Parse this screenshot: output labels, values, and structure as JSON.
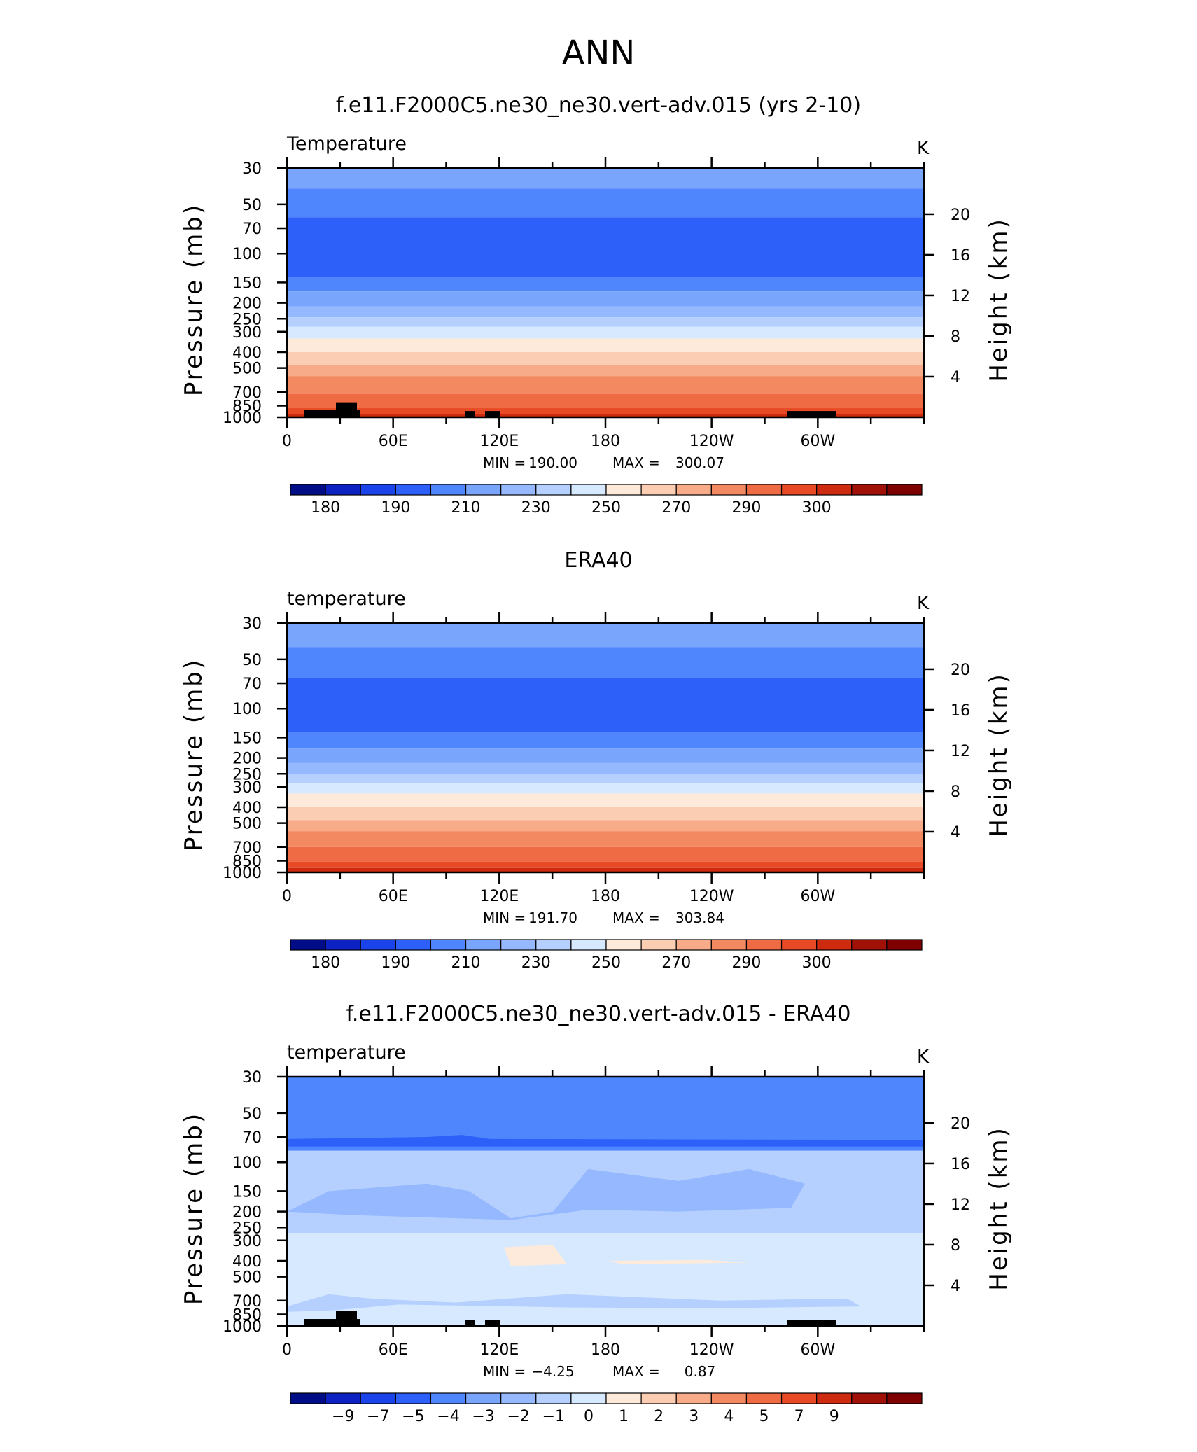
{
  "figure": {
    "title": "ANN"
  },
  "colors": {
    "pos": [
      "#fdeadb",
      "#fbcdb3",
      "#f7ab89",
      "#f38961",
      "#ef6b43",
      "#e74a24",
      "#cd2a10",
      "#a01207",
      "#7f0001"
    ],
    "neg": [
      "#d7e9fe",
      "#b5d0fe",
      "#95b8fe",
      "#7aa5fd",
      "#4f86fd",
      "#2c60f8",
      "#1a44ea",
      "#0d22c2",
      "#000d87"
    ]
  },
  "chart_data": [
    {
      "type": "heatmap",
      "title": "f.e11.F2000C5.ne30_ne30.vert-adv.015 (yrs 2-10)",
      "left_label": "Temperature",
      "units": "K",
      "ylabel": "Pressure  (mb)",
      "ylabel_right": "Height  (km)",
      "stats": {
        "min_label": "MIN =",
        "min": "190.00",
        "max_label": "MAX =",
        "max": "300.07"
      },
      "x_ticks": [
        "0",
        "60E",
        "120E",
        "180",
        "120W",
        "60W"
      ],
      "p_ticks": [
        "30",
        "50",
        "70",
        "100",
        "150",
        "200",
        "250",
        "300",
        "400",
        "500",
        "700",
        "850",
        "1000"
      ],
      "height_ticks": [
        "20",
        "16",
        "12",
        "8",
        "4"
      ],
      "colorbar_labels": [
        "180",
        "190",
        "210",
        "230",
        "250",
        "270",
        "290",
        "300"
      ],
      "bands": [
        {
          "p": 30,
          "c": "#7aa5fd"
        },
        {
          "p": 40,
          "c": "#4f86fd"
        },
        {
          "p": 60,
          "c": "#2c60f8"
        },
        {
          "p": 140,
          "c": "#4f86fd"
        },
        {
          "p": 170,
          "c": "#7aa5fd"
        },
        {
          "p": 210,
          "c": "#95b8fe"
        },
        {
          "p": 245,
          "c": "#b5d0fe"
        },
        {
          "p": 280,
          "c": "#d7e9fe"
        },
        {
          "p": 330,
          "c": "#fdeadb"
        },
        {
          "p": 400,
          "c": "#fbcdb3"
        },
        {
          "p": 480,
          "c": "#f7ab89"
        },
        {
          "p": 560,
          "c": "#f38961"
        },
        {
          "p": 720,
          "c": "#ef6b43"
        },
        {
          "p": 880,
          "c": "#e74a24"
        },
        {
          "p": 960,
          "c": "#cd2a10"
        }
      ],
      "topography": true
    },
    {
      "type": "heatmap",
      "title": "ERA40",
      "left_label": "temperature",
      "units": "K",
      "ylabel": "Pressure  (mb)",
      "ylabel_right": "Height  (km)",
      "stats": {
        "min_label": "MIN =",
        "min": "191.70",
        "max_label": "MAX =",
        "max": "303.84"
      },
      "x_ticks": [
        "0",
        "60E",
        "120E",
        "180",
        "120W",
        "60W"
      ],
      "p_ticks": [
        "30",
        "50",
        "70",
        "100",
        "150",
        "200",
        "250",
        "300",
        "400",
        "500",
        "700",
        "850",
        "1000"
      ],
      "height_ticks": [
        "20",
        "16",
        "12",
        "8",
        "4"
      ],
      "colorbar_labels": [
        "180",
        "190",
        "210",
        "230",
        "250",
        "270",
        "290",
        "300"
      ],
      "bands": [
        {
          "p": 30,
          "c": "#7aa5fd"
        },
        {
          "p": 42,
          "c": "#4f86fd"
        },
        {
          "p": 65,
          "c": "#2c60f8"
        },
        {
          "p": 140,
          "c": "#4f86fd"
        },
        {
          "p": 175,
          "c": "#7aa5fd"
        },
        {
          "p": 215,
          "c": "#95b8fe"
        },
        {
          "p": 250,
          "c": "#b5d0fe"
        },
        {
          "p": 285,
          "c": "#d7e9fe"
        },
        {
          "p": 330,
          "c": "#fdeadb"
        },
        {
          "p": 400,
          "c": "#fbcdb3"
        },
        {
          "p": 480,
          "c": "#f7ab89"
        },
        {
          "p": 560,
          "c": "#f38961"
        },
        {
          "p": 700,
          "c": "#ef6b43"
        },
        {
          "p": 860,
          "c": "#e74a24"
        },
        {
          "p": 940,
          "c": "#cd2a10"
        }
      ],
      "topography": false
    },
    {
      "type": "heatmap",
      "title": "f.e11.F2000C5.ne30_ne30.vert-adv.015 - ERA40",
      "left_label": "temperature",
      "units": "K",
      "ylabel": "Pressure  (mb)",
      "ylabel_right": "Height  (km)",
      "stats": {
        "min_label": "MIN =",
        "min": "−4.25",
        "max_label": "MAX =",
        "max": "0.87"
      },
      "x_ticks": [
        "0",
        "60E",
        "120E",
        "180",
        "120W",
        "60W"
      ],
      "p_ticks": [
        "30",
        "50",
        "70",
        "100",
        "150",
        "200",
        "250",
        "300",
        "400",
        "500",
        "700",
        "850",
        "1000"
      ],
      "height_ticks": [
        "20",
        "16",
        "12",
        "8",
        "4"
      ],
      "colorbar_labels": [
        "−9",
        "−7",
        "−5",
        "−4",
        "−3",
        "−2",
        "−1",
        "0",
        "1",
        "2",
        "3",
        "4",
        "5",
        "7",
        "9"
      ],
      "bands": [
        {
          "p": 30,
          "c": "#4f86fd"
        },
        {
          "p": 85,
          "c": "#b5d0fe"
        },
        {
          "p": 270,
          "c": "#d7e9fe"
        }
      ],
      "topography": true
    }
  ]
}
